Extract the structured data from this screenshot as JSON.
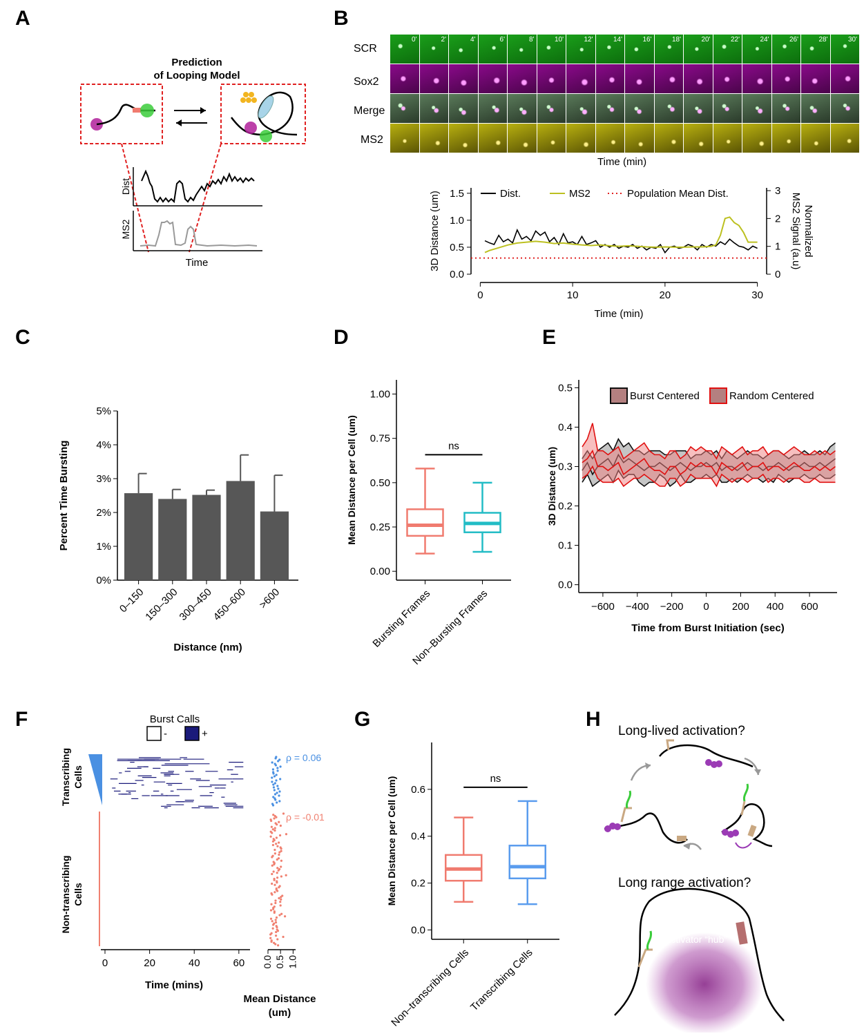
{
  "panels": {
    "A": {
      "letter": "A",
      "title_line1": "Prediction",
      "title_line2": "of Looping Model",
      "ylabel_top": "Dist",
      "ylabel_bottom": "MS2",
      "xlabel": "Time"
    },
    "B": {
      "letter": "B",
      "row_labels": [
        "SCR",
        "Sox2",
        "Merge",
        "MS2"
      ],
      "timepoints": [
        "0'",
        "2'",
        "4'",
        "6'",
        "8'",
        "10'",
        "12'",
        "14'",
        "16'",
        "18'",
        "20'",
        "22'",
        "24'",
        "26'",
        "28'",
        "30'"
      ],
      "micro_xlabel": "Time (min)",
      "colors": {
        "scr": "#1a9e1a",
        "sox2": "#8a0a8a",
        "ms2": "#b8b010"
      }
    },
    "C": {
      "letter": "C"
    },
    "D": {
      "letter": "D",
      "sig": "ns"
    },
    "E": {
      "letter": "E"
    },
    "F": {
      "letter": "F",
      "burst_calls_label": "Burst Calls",
      "burst_minus": "-",
      "burst_plus": "+",
      "transcribing_label_1": "Transcribing",
      "transcribing_label_2": "Cells",
      "nontranscribing_label_1": "Non-transcribing",
      "nontranscribing_label_2": "Cells",
      "rho_top": "ρ = 0.06",
      "rho_bottom": "ρ = -0.01",
      "xlabel": "Time (mins)",
      "xticks": [
        "0",
        "20",
        "40",
        "60"
      ],
      "side_xlabel_1": "Mean Distance",
      "side_xlabel_2": "(um)",
      "side_xticks": [
        "0.0",
        "0.5",
        "1.0"
      ],
      "colors": {
        "burst": "#1a1a7a",
        "trans": "#4a90e2",
        "nontrans": "#f08070"
      }
    },
    "G": {
      "letter": "G",
      "sig": "ns"
    },
    "H": {
      "letter": "H",
      "title_top": "Long-lived activation?",
      "title_bottom": "Long range activation?",
      "hub_label": "Activator “hub”"
    }
  },
  "chart_data": [
    {
      "id": "B-trace",
      "type": "line",
      "xlabel": "Time (min)",
      "ylabel": "3D Distance (um)",
      "ylabel_right_1": "Normalized",
      "ylabel_right_2": "MS2 Signal (a.u)",
      "xlim": [
        -1,
        31
      ],
      "ylim": [
        0,
        1.6
      ],
      "ylim_right": [
        0,
        3.1
      ],
      "xticks": [
        "0",
        "10",
        "20",
        "30"
      ],
      "yticks": [
        "0.0",
        "0.5",
        "1.0",
        "1.5"
      ],
      "yticks_right": [
        "0",
        "1",
        "2",
        "3"
      ],
      "legend": [
        "Dist.",
        "MS2",
        "Population Mean Dist."
      ],
      "population_mean": 0.3,
      "series": [
        {
          "name": "Dist.",
          "x": [
            0.5,
            1,
            1.5,
            2,
            2.5,
            3,
            3.5,
            4,
            4.5,
            5,
            5.5,
            6,
            6.5,
            7,
            7.5,
            8,
            8.5,
            9,
            9.5,
            10,
            10.5,
            11,
            11.5,
            12,
            12.5,
            13,
            13.5,
            14,
            14.5,
            15,
            15.5,
            16,
            16.5,
            17,
            17.5,
            18,
            18.5,
            19,
            19.5,
            20,
            20.5,
            21,
            21.5,
            22,
            22.5,
            23,
            23.5,
            24,
            24.5,
            25,
            25.5,
            26,
            26.5,
            27,
            27.5,
            28,
            28.5,
            29,
            29.5,
            30
          ],
          "values": [
            0.62,
            0.58,
            0.55,
            0.72,
            0.6,
            0.65,
            0.58,
            0.82,
            0.65,
            0.7,
            0.62,
            0.8,
            0.72,
            0.78,
            0.6,
            0.68,
            0.55,
            0.75,
            0.58,
            0.6,
            0.55,
            0.7,
            0.55,
            0.58,
            0.62,
            0.5,
            0.55,
            0.5,
            0.55,
            0.48,
            0.52,
            0.5,
            0.55,
            0.48,
            0.52,
            0.45,
            0.5,
            0.48,
            0.55,
            0.4,
            0.5,
            0.52,
            0.48,
            0.5,
            0.55,
            0.52,
            0.45,
            0.55,
            0.5,
            0.55,
            0.52,
            0.6,
            0.55,
            0.65,
            0.58,
            0.52,
            0.5,
            0.45,
            0.52,
            0.48
          ]
        },
        {
          "name": "MS2",
          "x": [
            0.5,
            1,
            2,
            3,
            4,
            5,
            6,
            7,
            8,
            9,
            10,
            11,
            12,
            13,
            14,
            15,
            16,
            17,
            18,
            19,
            20,
            21,
            22,
            23,
            24,
            25,
            25.5,
            26,
            26.5,
            27,
            27.5,
            28,
            28.5,
            29,
            29.5,
            30
          ],
          "values": [
            0.78,
            0.85,
            0.95,
            1.05,
            1.12,
            1.15,
            1.18,
            1.15,
            1.1,
            1.12,
            1.08,
            1.05,
            1.03,
            1.05,
            1.02,
            1.0,
            1.02,
            1.0,
            0.98,
            0.97,
            0.98,
            0.97,
            0.97,
            0.98,
            0.98,
            1.0,
            1.05,
            1.4,
            2.0,
            2.05,
            1.85,
            1.75,
            1.5,
            1.15,
            1.15,
            1.15
          ]
        }
      ]
    },
    {
      "id": "C",
      "type": "bar",
      "categories": [
        "0–150",
        "150–300",
        "300–450",
        "450–600",
        ">600"
      ],
      "values": [
        2.57,
        2.4,
        2.52,
        2.93,
        2.03
      ],
      "errors": [
        0.58,
        0.28,
        0.14,
        0.77,
        1.07
      ],
      "xlabel": "Distance (nm)",
      "ylabel": "Percent Time Bursting",
      "ylim": [
        0,
        5
      ],
      "yticks": [
        "0%",
        "1%",
        "2%",
        "3%",
        "4%",
        "5%"
      ]
    },
    {
      "id": "D",
      "type": "box",
      "categories": [
        "Bursting Frames",
        "Non–Bursting Frames"
      ],
      "boxes": [
        {
          "whislo": 0.1,
          "q1": 0.2,
          "med": 0.26,
          "q3": 0.35,
          "whishi": 0.58,
          "color": "#f07b6f"
        },
        {
          "whislo": 0.11,
          "q1": 0.22,
          "med": 0.27,
          "q3": 0.33,
          "whishi": 0.5,
          "color": "#22bcc5"
        }
      ],
      "ylabel": "Mean Distance per Cell (um)",
      "ylim": [
        -0.05,
        1.08
      ],
      "yticks": [
        "0.00",
        "0.25",
        "0.50",
        "0.75",
        "1.00"
      ],
      "significance": "ns"
    },
    {
      "id": "E",
      "type": "area",
      "xlabel": "Time from Burst Initiation (sec)",
      "ylabel": "3D Distance (um)",
      "xlim": [
        -740,
        760
      ],
      "ylim": [
        -0.02,
        0.52
      ],
      "xticks": [
        "−600",
        "−400",
        "−200",
        "0",
        "200",
        "400",
        "600"
      ],
      "yticks": [
        "0.0",
        "0.1",
        "0.2",
        "0.3",
        "0.4",
        "0.5"
      ],
      "legend": [
        "Burst Centered",
        "Random Centered"
      ],
      "x": [
        -720,
        -690,
        -660,
        -630,
        -600,
        -570,
        -540,
        -510,
        -480,
        -450,
        -420,
        -390,
        -360,
        -330,
        -300,
        -270,
        -240,
        -210,
        -180,
        -150,
        -120,
        -90,
        -60,
        -30,
        0,
        30,
        60,
        90,
        120,
        150,
        180,
        210,
        240,
        270,
        300,
        330,
        360,
        390,
        420,
        450,
        480,
        510,
        540,
        570,
        600,
        630,
        660,
        690,
        720,
        750
      ],
      "series": [
        {
          "name": "Burst Centered",
          "mean": [
            0.29,
            0.31,
            0.28,
            0.3,
            0.31,
            0.32,
            0.3,
            0.33,
            0.31,
            0.32,
            0.31,
            0.3,
            0.29,
            0.3,
            0.3,
            0.31,
            0.3,
            0.29,
            0.3,
            0.31,
            0.3,
            0.29,
            0.3,
            0.3,
            0.31,
            0.3,
            0.31,
            0.29,
            0.3,
            0.3,
            0.29,
            0.3,
            0.31,
            0.3,
            0.3,
            0.29,
            0.3,
            0.3,
            0.31,
            0.3,
            0.29,
            0.3,
            0.3,
            0.31,
            0.3,
            0.3,
            0.31,
            0.3,
            0.31,
            0.32
          ],
          "lower": [
            0.26,
            0.28,
            0.25,
            0.26,
            0.27,
            0.28,
            0.26,
            0.29,
            0.27,
            0.28,
            0.28,
            0.26,
            0.25,
            0.26,
            0.26,
            0.28,
            0.27,
            0.25,
            0.26,
            0.28,
            0.26,
            0.26,
            0.27,
            0.27,
            0.28,
            0.27,
            0.28,
            0.26,
            0.26,
            0.27,
            0.26,
            0.27,
            0.28,
            0.27,
            0.27,
            0.26,
            0.27,
            0.26,
            0.28,
            0.27,
            0.26,
            0.27,
            0.27,
            0.28,
            0.27,
            0.27,
            0.28,
            0.27,
            0.27,
            0.28
          ],
          "upper": [
            0.32,
            0.34,
            0.32,
            0.34,
            0.35,
            0.36,
            0.34,
            0.37,
            0.35,
            0.36,
            0.34,
            0.34,
            0.33,
            0.34,
            0.34,
            0.34,
            0.33,
            0.33,
            0.34,
            0.34,
            0.34,
            0.32,
            0.33,
            0.33,
            0.34,
            0.33,
            0.34,
            0.32,
            0.34,
            0.33,
            0.32,
            0.33,
            0.34,
            0.33,
            0.33,
            0.32,
            0.33,
            0.34,
            0.34,
            0.33,
            0.32,
            0.33,
            0.33,
            0.34,
            0.33,
            0.33,
            0.34,
            0.33,
            0.35,
            0.36
          ]
        },
        {
          "name": "Random Centered",
          "mean": [
            0.31,
            0.32,
            0.34,
            0.3,
            0.3,
            0.29,
            0.3,
            0.31,
            0.28,
            0.29,
            0.3,
            0.31,
            0.32,
            0.3,
            0.29,
            0.29,
            0.28,
            0.3,
            0.3,
            0.28,
            0.29,
            0.31,
            0.3,
            0.31,
            0.3,
            0.3,
            0.28,
            0.31,
            0.3,
            0.29,
            0.3,
            0.31,
            0.29,
            0.3,
            0.3,
            0.31,
            0.29,
            0.3,
            0.3,
            0.29,
            0.3,
            0.31,
            0.3,
            0.29,
            0.29,
            0.3,
            0.29,
            0.3,
            0.29,
            0.3
          ],
          "lower": [
            0.27,
            0.28,
            0.3,
            0.27,
            0.26,
            0.26,
            0.26,
            0.27,
            0.25,
            0.26,
            0.27,
            0.27,
            0.28,
            0.27,
            0.26,
            0.25,
            0.25,
            0.27,
            0.27,
            0.25,
            0.26,
            0.28,
            0.27,
            0.27,
            0.27,
            0.27,
            0.25,
            0.28,
            0.27,
            0.26,
            0.27,
            0.27,
            0.26,
            0.27,
            0.27,
            0.28,
            0.26,
            0.27,
            0.27,
            0.26,
            0.27,
            0.27,
            0.27,
            0.26,
            0.26,
            0.27,
            0.26,
            0.26,
            0.26,
            0.26
          ],
          "upper": [
            0.35,
            0.37,
            0.41,
            0.34,
            0.34,
            0.33,
            0.34,
            0.35,
            0.32,
            0.33,
            0.34,
            0.35,
            0.36,
            0.34,
            0.33,
            0.33,
            0.32,
            0.34,
            0.34,
            0.32,
            0.33,
            0.35,
            0.34,
            0.35,
            0.34,
            0.34,
            0.32,
            0.35,
            0.34,
            0.33,
            0.34,
            0.35,
            0.33,
            0.34,
            0.34,
            0.35,
            0.33,
            0.34,
            0.34,
            0.33,
            0.34,
            0.35,
            0.34,
            0.33,
            0.33,
            0.34,
            0.33,
            0.34,
            0.33,
            0.34
          ]
        }
      ]
    },
    {
      "id": "G",
      "type": "box",
      "categories": [
        "Non–transcribing Cells",
        "Transcribing Cells"
      ],
      "boxes": [
        {
          "whislo": 0.12,
          "q1": 0.21,
          "med": 0.26,
          "q3": 0.32,
          "whishi": 0.48,
          "color": "#f07b6f"
        },
        {
          "whislo": 0.11,
          "q1": 0.22,
          "med": 0.27,
          "q3": 0.36,
          "whishi": 0.55,
          "color": "#5a9cee"
        }
      ],
      "ylabel": "Mean Distance per Cell (um)",
      "ylim": [
        -0.04,
        0.8
      ],
      "yticks": [
        "0.0",
        "0.2",
        "0.4",
        "0.6"
      ],
      "significance": "ns"
    }
  ]
}
